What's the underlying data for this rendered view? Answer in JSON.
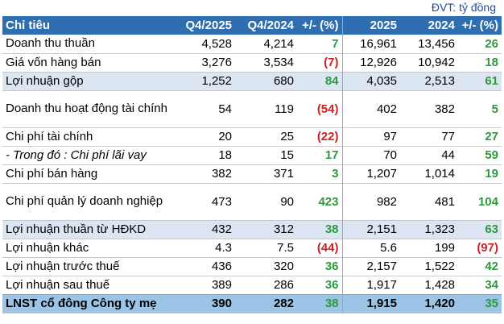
{
  "unit_note": "ĐVT: tỷ đồng",
  "headers": [
    "Chỉ tiêu",
    "Q4/2025",
    "Q4/2024",
    "+/- (%)",
    "2025",
    "2024",
    "+/- (%)"
  ],
  "rows": [
    {
      "label": "Doanh thu thuần",
      "q4_2025": "4,528",
      "q4_2024": "4,214",
      "q_chg": "7",
      "y2025": "16,961",
      "y2024": "13,456",
      "y_chg": "26"
    },
    {
      "label": "Giá vốn hàng bán",
      "q4_2025": "3,276",
      "q4_2024": "3,534",
      "q_chg": "(7)",
      "y2025": "12,926",
      "y2024": "10,942",
      "y_chg": "18"
    },
    {
      "label": "Lợi nhuận gộp",
      "q4_2025": "1,252",
      "q4_2024": "680",
      "q_chg": "84",
      "y2025": "4,035",
      "y2024": "2,513",
      "y_chg": "61"
    },
    {
      "label": "Doanh thu hoạt động tài chính",
      "q4_2025": "54",
      "q4_2024": "119",
      "q_chg": "(54)",
      "y2025": "402",
      "y2024": "382",
      "y_chg": "5"
    },
    {
      "label": "Chi phí tài chính",
      "q4_2025": "20",
      "q4_2024": "25",
      "q_chg": "(22)",
      "y2025": "97",
      "y2024": "77",
      "y_chg": "27"
    },
    {
      "label": "- Trong đó : Chi phí lãi vay",
      "q4_2025": "18",
      "q4_2024": "15",
      "q_chg": "17",
      "y2025": "70",
      "y2024": "44",
      "y_chg": "59"
    },
    {
      "label": "Chi phí bán hàng",
      "q4_2025": "382",
      "q4_2024": "371",
      "q_chg": "3",
      "y2025": "1,207",
      "y2024": "1,014",
      "y_chg": "19"
    },
    {
      "label": "Chi phí quản lý doanh nghiệp",
      "q4_2025": "473",
      "q4_2024": "90",
      "q_chg": "423",
      "y2025": "982",
      "y2024": "481",
      "y_chg": "104"
    },
    {
      "label": "Lợi nhuận thuần từ HĐKD",
      "q4_2025": "432",
      "q4_2024": "312",
      "q_chg": "38",
      "y2025": "2,151",
      "y2024": "1,323",
      "y_chg": "63"
    },
    {
      "label": "Lợi nhuận khác",
      "q4_2025": "4.3",
      "q4_2024": "7.5",
      "q_chg": "(44)",
      "y2025": "5.6",
      "y2024": "199",
      "y_chg": "(97)"
    },
    {
      "label": "Lợi nhuận trước thuế",
      "q4_2025": "436",
      "q4_2024": "320",
      "q_chg": "36",
      "y2025": "2,157",
      "y2024": "1,522",
      "y_chg": "42"
    },
    {
      "label": "Lợi nhuận sau thuế",
      "q4_2025": "389",
      "q4_2024": "286",
      "q_chg": "36",
      "y2025": "1,917",
      "y2024": "1,428",
      "y_chg": "34"
    },
    {
      "label": "LNST cổ đông Công ty mẹ",
      "q4_2025": "390",
      "q4_2024": "282",
      "q_chg": "38",
      "y2025": "1,915",
      "y2024": "1,420",
      "y_chg": "35"
    }
  ],
  "colors": {
    "header_bg": "#2f6fb1",
    "highlight_bg": "#dce6f2",
    "total_bg": "#9bc4e6",
    "positive": "#2e9a3d",
    "negative": "#d01f1f",
    "unit_note": "#1f4e9c"
  }
}
